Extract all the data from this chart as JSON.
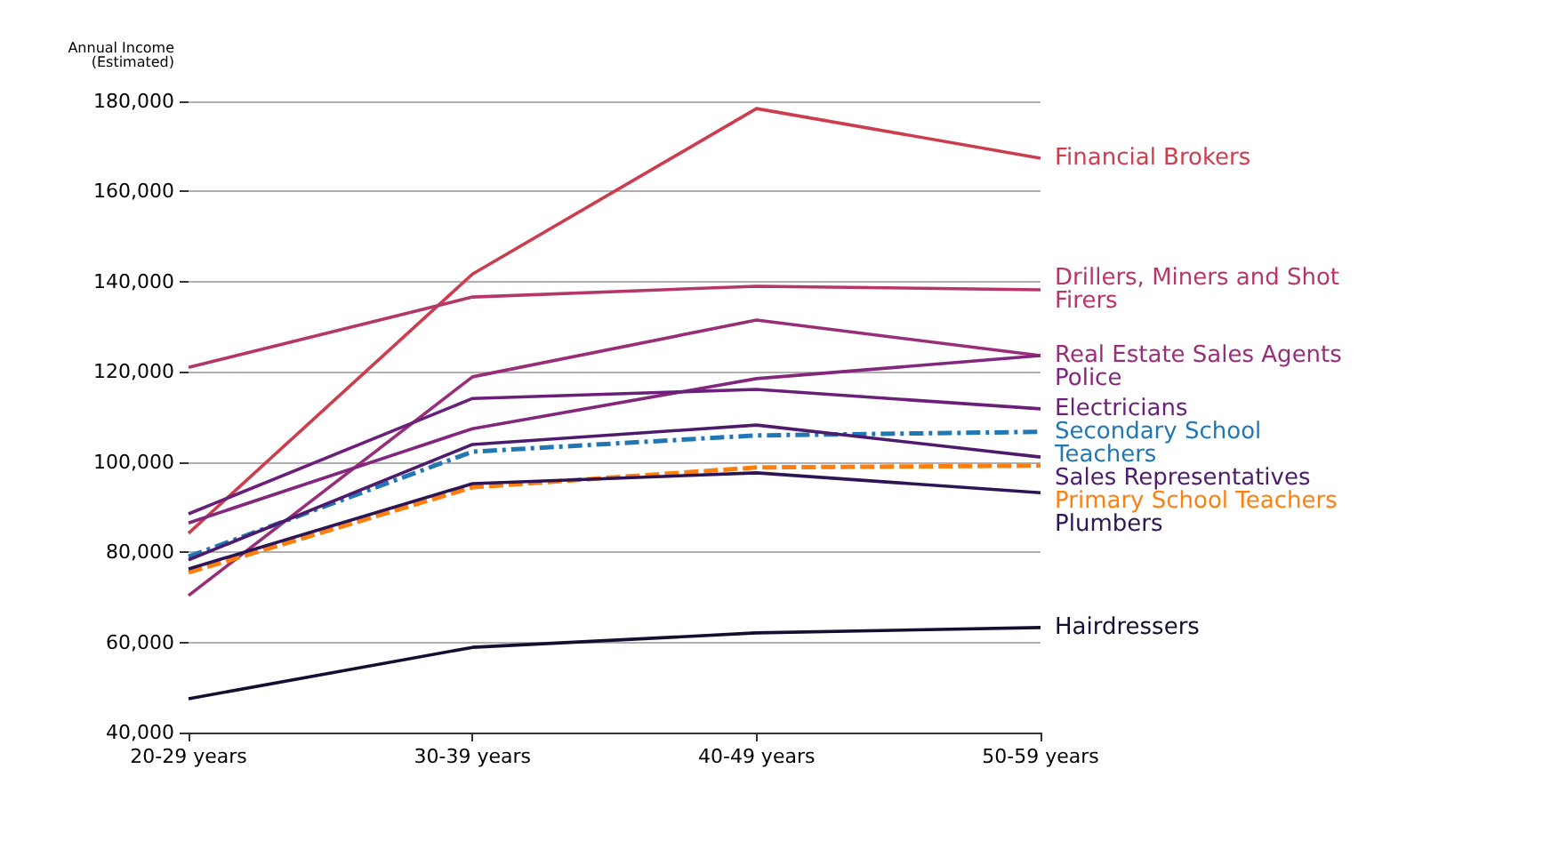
{
  "chart_data": {
    "type": "line",
    "ylabel": "Annual Income\n(Estimated)",
    "categories": [
      "20-29 years",
      "30-39 years",
      "40-49 years",
      "50-59 years"
    ],
    "ylim": [
      40000,
      180000
    ],
    "yticks": [
      {
        "value": 40000,
        "label": "40,000"
      },
      {
        "value": 60000,
        "label": "60,000"
      },
      {
        "value": 80000,
        "label": "80,000"
      },
      {
        "value": 100000,
        "label": "100,000"
      },
      {
        "value": 120000,
        "label": "120,000"
      },
      {
        "value": 140000,
        "label": "140,000"
      },
      {
        "value": 160000,
        "label": "160,000"
      },
      {
        "value": 180000,
        "label": "180,000"
      }
    ],
    "grid": "y",
    "legend": false,
    "marker": "none",
    "series": [
      {
        "name": "Financial Brokers",
        "color": "#cc3d4e",
        "values": [
          84200,
          141700,
          178400,
          167400
        ]
      },
      {
        "name": "Drillers, Miners and Shot Firers",
        "color": "#b53668",
        "values": [
          121000,
          136600,
          139000,
          138200
        ]
      },
      {
        "name": "Real Estate Sales Agents",
        "color": "#982e77",
        "values": [
          70400,
          118900,
          131500,
          123600
        ]
      },
      {
        "name": "Police",
        "color": "#82277d",
        "values": [
          86500,
          107400,
          118500,
          123600
        ]
      },
      {
        "name": "Electricians",
        "color": "#6a1f78",
        "values": [
          88500,
          114100,
          116100,
          111800
        ]
      },
      {
        "name": "Secondary School Teachers",
        "color": "#2077b4",
        "line_style": "dotted",
        "values": [
          79000,
          102300,
          105900,
          106700
        ]
      },
      {
        "name": "Sales Representatives",
        "color": "#4d1a6c",
        "values": [
          78300,
          103900,
          108200,
          101100
        ]
      },
      {
        "name": "Primary School Teachers",
        "color": "#ff7f0e",
        "line_style": "dashed",
        "values": [
          75500,
          94400,
          98800,
          99200
        ]
      },
      {
        "name": "Plumbers",
        "color": "#2c1455",
        "values": [
          76300,
          95200,
          97600,
          93200
        ]
      },
      {
        "name": "Hairdressers",
        "color": "#140e30",
        "values": [
          47500,
          58900,
          62100,
          63300
        ]
      }
    ]
  }
}
